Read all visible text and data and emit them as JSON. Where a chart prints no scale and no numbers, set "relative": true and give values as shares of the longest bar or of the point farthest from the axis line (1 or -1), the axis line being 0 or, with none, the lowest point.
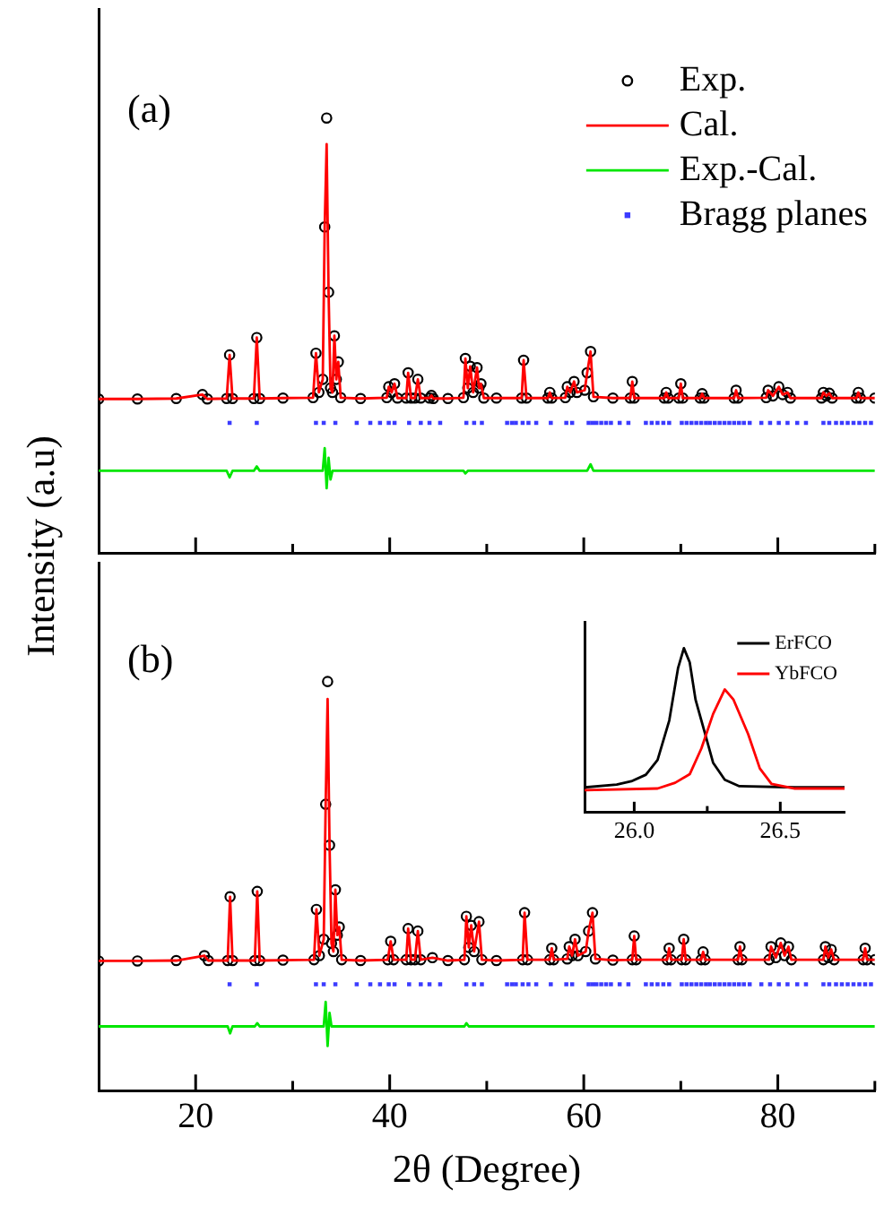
{
  "chart_data": [
    {
      "type": "scatter",
      "title": "(a)",
      "relative": true,
      "legend": "top right",
      "tick_labels": false,
      "xlim": [
        10,
        90
      ],
      "xticks": [
        20,
        {
          "value": 30,
          "label": null
        },
        40,
        {
          "value": 50,
          "label": null
        },
        60,
        {
          "value": 70,
          "label": null
        },
        80,
        {
          "value": 90,
          "label": null
        }
      ],
      "x": [
        10,
        14,
        18,
        20.7,
        21.2,
        23.2,
        23.5,
        23.8,
        26,
        26.3,
        26.6,
        29,
        32.1,
        32.4,
        32.7,
        33.1,
        33.3,
        33.5,
        33.7,
        33.9,
        34.1,
        34.3,
        34.5,
        34.7,
        34.95,
        37,
        39.7,
        39.9,
        40.2,
        40.5,
        40.8,
        41.7,
        41.9,
        42.2,
        42.6,
        42.9,
        43.2,
        44.1,
        44.3,
        44.5,
        46,
        47.6,
        47.8,
        48.05,
        48.3,
        48.6,
        49,
        49.2,
        49.4,
        49.7,
        51,
        53.6,
        53.8,
        54.1,
        56.3,
        56.5,
        56.7,
        58.1,
        58.3,
        58.6,
        59,
        59.3,
        60.1,
        60.35,
        60.7,
        61,
        63,
        64.8,
        65,
        65.2,
        68.3,
        68.5,
        68.7,
        69.8,
        70,
        70.2,
        72,
        72.2,
        72.4,
        75.5,
        75.7,
        75.9,
        78.8,
        79,
        79.5,
        80.1,
        80.5,
        81,
        81.3,
        84.5,
        84.7,
        85,
        85.3,
        85.6,
        88.1,
        88.3,
        88.5,
        90
      ],
      "series": [
        {
          "name": "Exp.",
          "type": "scatter",
          "marker": "circle",
          "color": "#000000",
          "values": [
            0.355,
            0.355,
            0.356,
            0.365,
            0.355,
            0.356,
            0.456,
            0.356,
            0.356,
            0.496,
            0.356,
            0.357,
            0.358,
            0.46,
            0.37,
            0.4,
            0.75,
            1.0,
            0.6,
            0.38,
            0.37,
            0.5,
            0.4,
            0.44,
            0.358,
            0.356,
            0.358,
            0.383,
            0.37,
            0.39,
            0.357,
            0.357,
            0.415,
            0.357,
            0.357,
            0.4,
            0.357,
            0.357,
            0.363,
            0.356,
            0.356,
            0.358,
            0.448,
            0.38,
            0.43,
            0.37,
            0.427,
            0.38,
            0.39,
            0.357,
            0.357,
            0.357,
            0.444,
            0.357,
            0.357,
            0.37,
            0.357,
            0.358,
            0.383,
            0.37,
            0.395,
            0.37,
            0.375,
            0.415,
            0.464,
            0.36,
            0.357,
            0.357,
            0.395,
            0.357,
            0.357,
            0.37,
            0.357,
            0.357,
            0.39,
            0.357,
            0.357,
            0.367,
            0.357,
            0.357,
            0.375,
            0.357,
            0.358,
            0.375,
            0.362,
            0.383,
            0.365,
            0.37,
            0.357,
            0.357,
            0.37,
            0.362,
            0.368,
            0.357,
            0.357,
            0.37,
            0.357,
            0.357
          ]
        },
        {
          "name": "Cal.",
          "type": "line",
          "marker": "none",
          "color": "#ff0000",
          "values": [
            0.355,
            0.355,
            0.356,
            0.365,
            0.355,
            0.356,
            0.456,
            0.356,
            0.356,
            0.496,
            0.356,
            0.357,
            0.358,
            0.46,
            0.37,
            0.4,
            0.75,
            0.94,
            0.6,
            0.38,
            0.37,
            0.5,
            0.4,
            0.44,
            0.358,
            0.356,
            0.358,
            0.383,
            0.37,
            0.39,
            0.357,
            0.357,
            0.415,
            0.357,
            0.357,
            0.4,
            0.357,
            0.357,
            0.363,
            0.356,
            0.356,
            0.358,
            0.448,
            0.38,
            0.43,
            0.37,
            0.427,
            0.38,
            0.39,
            0.357,
            0.357,
            0.357,
            0.444,
            0.357,
            0.357,
            0.37,
            0.357,
            0.358,
            0.383,
            0.37,
            0.395,
            0.37,
            0.375,
            0.415,
            0.464,
            0.36,
            0.357,
            0.357,
            0.395,
            0.357,
            0.357,
            0.37,
            0.357,
            0.357,
            0.39,
            0.357,
            0.357,
            0.367,
            0.357,
            0.357,
            0.375,
            0.357,
            0.358,
            0.375,
            0.362,
            0.383,
            0.365,
            0.37,
            0.357,
            0.357,
            0.37,
            0.362,
            0.368,
            0.357,
            0.357,
            0.37,
            0.357,
            0.357
          ]
        },
        {
          "name": "Exp.-Cal.",
          "type": "line",
          "marker": "none",
          "color": "#00e600",
          "values": [
            0.19,
            0.19,
            0.19,
            0.19,
            0.19,
            0.19,
            0.175,
            0.19,
            0.19,
            0.2,
            0.19,
            0.19,
            0.19,
            0.19,
            0.19,
            0.19,
            0.242,
            0.15,
            0.22,
            0.17,
            0.19,
            0.19,
            0.19,
            0.19,
            0.19,
            0.19,
            0.19,
            0.19,
            0.19,
            0.19,
            0.19,
            0.19,
            0.19,
            0.19,
            0.19,
            0.19,
            0.19,
            0.19,
            0.19,
            0.19,
            0.19,
            0.19,
            0.184,
            0.19,
            0.19,
            0.19,
            0.19,
            0.19,
            0.19,
            0.19,
            0.19,
            0.19,
            0.19,
            0.19,
            0.19,
            0.19,
            0.19,
            0.19,
            0.19,
            0.19,
            0.19,
            0.19,
            0.19,
            0.19,
            0.205,
            0.19,
            0.19,
            0.19,
            0.19,
            0.19,
            0.19,
            0.19,
            0.19,
            0.19,
            0.19,
            0.19,
            0.19,
            0.19,
            0.19,
            0.19,
            0.19,
            0.19,
            0.19,
            0.19,
            0.19,
            0.19,
            0.19,
            0.19,
            0.19,
            0.19,
            0.19,
            0.19,
            0.19,
            0.19,
            0.19,
            0.19,
            0.19,
            0.19
          ]
        },
        {
          "name": "Bragg planes",
          "type": "scatter",
          "marker": "square",
          "color": "#3b3bff",
          "x": [
            23.5,
            26.3,
            32.4,
            33.2,
            34.4,
            36.6,
            38,
            39,
            39.9,
            40.5,
            42,
            43.2,
            44.1,
            45.2,
            47.9,
            48.7,
            49.5,
            52.1,
            52.6,
            53,
            53.7,
            54.3,
            55.1,
            56.6,
            58.2,
            58.8,
            60.5,
            60.9,
            61.3,
            61.8,
            62.3,
            62.8,
            63.7,
            64.6,
            66.4,
            67,
            67.6,
            68.2,
            68.8,
            70.1,
            70.6,
            71.1,
            71.6,
            72.1,
            72.6,
            73,
            73.5,
            74,
            74.5,
            75,
            75.5,
            76,
            76.5,
            77.1,
            78.3,
            79.2,
            80.1,
            81,
            82,
            82.9,
            84.7,
            85.3,
            86,
            86.6,
            87.2,
            87.8,
            88.4,
            89,
            89.6
          ],
          "values": [
            0.3,
            0.3,
            0.3,
            0.3,
            0.3,
            0.3,
            0.3,
            0.3,
            0.3,
            0.3,
            0.3,
            0.3,
            0.3,
            0.3,
            0.3,
            0.3,
            0.3,
            0.3,
            0.3,
            0.3,
            0.3,
            0.3,
            0.3,
            0.3,
            0.3,
            0.3,
            0.3,
            0.3,
            0.3,
            0.3,
            0.3,
            0.3,
            0.3,
            0.3,
            0.3,
            0.3,
            0.3,
            0.3,
            0.3,
            0.3,
            0.3,
            0.3,
            0.3,
            0.3,
            0.3,
            0.3,
            0.3,
            0.3,
            0.3,
            0.3,
            0.3,
            0.3,
            0.3,
            0.3,
            0.3,
            0.3,
            0.3,
            0.3,
            0.3,
            0.3,
            0.3,
            0.3,
            0.3,
            0.3,
            0.3,
            0.3,
            0.3,
            0.3,
            0.3
          ]
        }
      ]
    },
    {
      "type": "scatter",
      "title": "(b)",
      "relative": true,
      "tick_labels": "x",
      "xlabel": "2θ (Degree)",
      "ylabel": "Intensity (a.u)",
      "xlim": [
        10,
        90
      ],
      "xticks": [
        20,
        {
          "value": 30,
          "label": null
        },
        40,
        {
          "value": 50,
          "label": null
        },
        60,
        {
          "value": 70,
          "label": null
        },
        80,
        {
          "value": 90,
          "label": null
        }
      ],
      "x": [
        10,
        14,
        18,
        20.9,
        21.3,
        23.3,
        23.55,
        23.8,
        26.1,
        26.35,
        26.6,
        29,
        32.2,
        32.45,
        32.75,
        33.2,
        33.4,
        33.6,
        33.8,
        34.0,
        34.2,
        34.4,
        34.6,
        34.8,
        35.05,
        37,
        39.8,
        40.1,
        40.4,
        41.7,
        41.9,
        42.2,
        42.6,
        42.9,
        43.2,
        44.4,
        46,
        47.7,
        47.9,
        48.15,
        48.4,
        48.7,
        49.2,
        49.5,
        51,
        53.7,
        53.9,
        54.2,
        56.5,
        56.7,
        56.9,
        58.3,
        58.5,
        58.8,
        59.1,
        59.4,
        60.2,
        60.5,
        60.9,
        61.2,
        63,
        65,
        65.2,
        65.4,
        68.6,
        68.8,
        69,
        70.1,
        70.3,
        70.5,
        72.1,
        72.3,
        72.5,
        75.9,
        76.1,
        76.3,
        79.1,
        79.3,
        79.8,
        80.3,
        80.7,
        81.1,
        81.4,
        84.7,
        84.9,
        85.2,
        85.5,
        85.8,
        88.8,
        89,
        89.2,
        90
      ],
      "series": [
        {
          "type": "scatter",
          "marker": "circle",
          "color": "#000000",
          "values": [
            0.317,
            0.317,
            0.318,
            0.33,
            0.318,
            0.318,
            0.474,
            0.318,
            0.318,
            0.487,
            0.318,
            0.319,
            0.32,
            0.443,
            0.33,
            0.37,
            0.7,
            1.0,
            0.6,
            0.36,
            0.34,
            0.491,
            0.38,
            0.4,
            0.32,
            0.318,
            0.32,
            0.365,
            0.32,
            0.32,
            0.396,
            0.32,
            0.32,
            0.39,
            0.32,
            0.325,
            0.318,
            0.32,
            0.426,
            0.35,
            0.404,
            0.34,
            0.413,
            0.32,
            0.318,
            0.32,
            0.435,
            0.32,
            0.32,
            0.348,
            0.32,
            0.322,
            0.352,
            0.33,
            0.37,
            0.33,
            0.34,
            0.39,
            0.435,
            0.322,
            0.319,
            0.32,
            0.378,
            0.32,
            0.32,
            0.348,
            0.32,
            0.32,
            0.37,
            0.32,
            0.32,
            0.339,
            0.32,
            0.32,
            0.352,
            0.32,
            0.32,
            0.352,
            0.325,
            0.361,
            0.33,
            0.352,
            0.32,
            0.32,
            0.352,
            0.325,
            0.345,
            0.32,
            0.32,
            0.348,
            0.32,
            0.32
          ]
        },
        {
          "type": "line",
          "marker": "none",
          "color": "#ff0000",
          "values": [
            0.317,
            0.317,
            0.318,
            0.33,
            0.318,
            0.318,
            0.474,
            0.318,
            0.318,
            0.487,
            0.318,
            0.319,
            0.32,
            0.443,
            0.33,
            0.37,
            0.7,
            0.957,
            0.6,
            0.36,
            0.34,
            0.491,
            0.38,
            0.4,
            0.32,
            0.318,
            0.32,
            0.365,
            0.32,
            0.32,
            0.396,
            0.32,
            0.32,
            0.39,
            0.32,
            0.325,
            0.318,
            0.32,
            0.426,
            0.35,
            0.404,
            0.34,
            0.413,
            0.32,
            0.318,
            0.32,
            0.435,
            0.32,
            0.32,
            0.348,
            0.32,
            0.322,
            0.352,
            0.33,
            0.37,
            0.33,
            0.34,
            0.39,
            0.435,
            0.322,
            0.319,
            0.32,
            0.378,
            0.32,
            0.32,
            0.348,
            0.32,
            0.32,
            0.37,
            0.32,
            0.32,
            0.339,
            0.32,
            0.32,
            0.352,
            0.32,
            0.32,
            0.352,
            0.325,
            0.361,
            0.33,
            0.352,
            0.32,
            0.32,
            0.352,
            0.325,
            0.345,
            0.32,
            0.32,
            0.348,
            0.32,
            0.32
          ]
        },
        {
          "type": "line",
          "marker": "none",
          "color": "#00e600",
          "values": [
            0.157,
            0.157,
            0.157,
            0.157,
            0.157,
            0.157,
            0.14,
            0.157,
            0.157,
            0.165,
            0.157,
            0.157,
            0.157,
            0.157,
            0.157,
            0.157,
            0.217,
            0.109,
            0.19,
            0.157,
            0.157,
            0.157,
            0.157,
            0.157,
            0.157,
            0.157,
            0.157,
            0.157,
            0.157,
            0.157,
            0.157,
            0.157,
            0.157,
            0.157,
            0.157,
            0.157,
            0.157,
            0.157,
            0.165,
            0.157,
            0.157,
            0.157,
            0.157,
            0.157,
            0.157,
            0.157,
            0.157,
            0.157,
            0.157,
            0.157,
            0.157,
            0.157,
            0.157,
            0.157,
            0.157,
            0.157,
            0.157,
            0.157,
            0.157,
            0.157,
            0.157,
            0.157,
            0.157,
            0.157,
            0.157,
            0.157,
            0.157,
            0.157,
            0.157,
            0.157,
            0.157,
            0.157,
            0.157,
            0.157,
            0.157,
            0.157,
            0.157,
            0.157,
            0.157,
            0.157,
            0.157,
            0.157,
            0.157,
            0.157,
            0.157,
            0.157,
            0.157,
            0.157,
            0.157,
            0.157,
            0.157,
            0.157
          ]
        },
        {
          "type": "scatter",
          "marker": "square",
          "color": "#3b3bff",
          "x": [
            23.5,
            26.3,
            32.4,
            33.2,
            34.4,
            36.6,
            38,
            39,
            39.9,
            40.5,
            42,
            43.2,
            44.1,
            45.2,
            47.9,
            48.7,
            49.5,
            52.1,
            52.6,
            53,
            53.7,
            54.3,
            55.1,
            56.6,
            58.2,
            58.8,
            60.5,
            60.9,
            61.3,
            61.8,
            62.3,
            62.8,
            63.7,
            64.6,
            66.4,
            67,
            67.6,
            68.2,
            68.8,
            70.1,
            70.6,
            71.1,
            71.6,
            72.1,
            72.6,
            73,
            73.5,
            74,
            74.5,
            75,
            75.5,
            76,
            76.5,
            77.1,
            78.3,
            79.2,
            80.1,
            81,
            82,
            82.9,
            84.7,
            85.3,
            86,
            86.6,
            87.2,
            87.8,
            88.4,
            89,
            89.6
          ],
          "values": [
            0.26,
            0.26,
            0.26,
            0.26,
            0.26,
            0.26,
            0.26,
            0.26,
            0.26,
            0.26,
            0.26,
            0.26,
            0.26,
            0.26,
            0.26,
            0.26,
            0.26,
            0.26,
            0.26,
            0.26,
            0.26,
            0.26,
            0.26,
            0.26,
            0.26,
            0.26,
            0.26,
            0.26,
            0.26,
            0.26,
            0.26,
            0.26,
            0.26,
            0.26,
            0.26,
            0.26,
            0.26,
            0.26,
            0.26,
            0.26,
            0.26,
            0.26,
            0.26,
            0.26,
            0.26,
            0.26,
            0.26,
            0.26,
            0.26,
            0.26,
            0.26,
            0.26,
            0.26,
            0.26,
            0.26,
            0.26,
            0.26,
            0.26,
            0.26,
            0.26,
            0.26,
            0.26,
            0.26,
            0.26,
            0.26,
            0.26,
            0.26,
            0.26,
            0.26
          ]
        }
      ]
    },
    {
      "type": "line",
      "relative": true,
      "legend": "top right",
      "marker": "none",
      "xlim": [
        25.83,
        26.72
      ],
      "xticks": [
        {
          "value": 26.0,
          "label": "26.0"
        },
        {
          "value": 26.25,
          "label": null
        },
        {
          "value": 26.5,
          "label": "26.5"
        }
      ],
      "series": [
        {
          "name": "ErFCO",
          "color": "#000000",
          "x": [
            25.83,
            25.94,
            25.99,
            26.04,
            26.08,
            26.12,
            26.15,
            26.17,
            26.19,
            26.21,
            26.24,
            26.27,
            26.31,
            26.36,
            26.55,
            26.72
          ],
          "values": [
            0.153,
            0.17,
            0.19,
            0.23,
            0.32,
            0.56,
            0.878,
            1,
            0.913,
            0.686,
            0.495,
            0.303,
            0.199,
            0.16,
            0.153,
            0.153
          ]
        },
        {
          "name": "YbFCO",
          "color": "#ff0000",
          "x": [
            25.83,
            26.08,
            26.14,
            26.19,
            26.23,
            26.27,
            26.31,
            26.34,
            26.39,
            26.43,
            26.47,
            26.55,
            26.72
          ],
          "values": [
            0.136,
            0.146,
            0.181,
            0.233,
            0.39,
            0.599,
            0.749,
            0.686,
            0.477,
            0.268,
            0.174,
            0.146,
            0.146
          ]
        }
      ]
    }
  ]
}
